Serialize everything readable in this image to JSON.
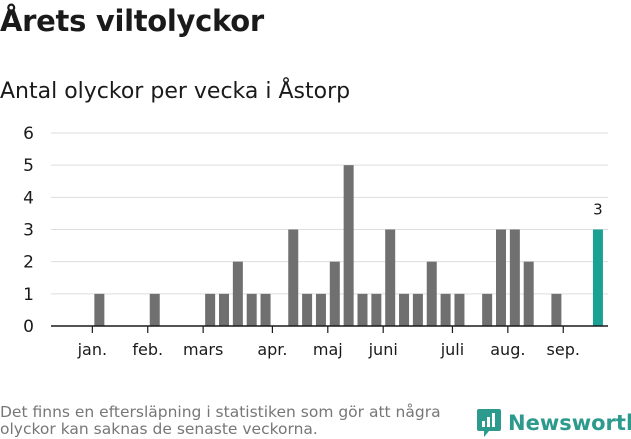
{
  "title": "Årets viltolyckor",
  "subtitle": "Antal olyckor per vecka i Åstorp",
  "footnote": "Det finns en eftersläpning i statistiken som gör att några olyckor kan saknas de senaste veckorna.",
  "brand": {
    "name": "Newsworthy",
    "icon": "newsworthy-logo-icon"
  },
  "colors": {
    "bar": "#707070",
    "highlight": "#1aa193",
    "grid": "#dddddd",
    "axis": "#1a1a1a",
    "brand": "#2c9a8c"
  },
  "chart_data": {
    "type": "bar",
    "title": "Antal olyckor per vecka i Åstorp",
    "xlabel": "",
    "ylabel": "",
    "ylim": [
      0,
      6
    ],
    "yticks": [
      0,
      1,
      2,
      3,
      4,
      5,
      6
    ],
    "grid": true,
    "categories": [
      1,
      2,
      3,
      4,
      5,
      6,
      7,
      8,
      9,
      10,
      11,
      12,
      13,
      14,
      15,
      16,
      17,
      18,
      19,
      20,
      21,
      22,
      23,
      24,
      25,
      26,
      27,
      28,
      29,
      30,
      31,
      32,
      33,
      34,
      35,
      36,
      37,
      38
    ],
    "values": [
      0,
      1,
      0,
      0,
      0,
      1,
      0,
      0,
      0,
      1,
      1,
      2,
      1,
      1,
      0,
      3,
      1,
      1,
      2,
      5,
      1,
      1,
      3,
      1,
      1,
      2,
      1,
      1,
      0,
      1,
      3,
      3,
      2,
      0,
      1,
      0,
      0,
      3
    ],
    "highlight_index": 37,
    "data_labels": [
      {
        "index": 37,
        "text": "3"
      }
    ],
    "month_labels": [
      {
        "label": "jan.",
        "week": 2
      },
      {
        "label": "feb.",
        "week": 6
      },
      {
        "label": "mars",
        "week": 10
      },
      {
        "label": "apr.",
        "week": 15
      },
      {
        "label": "maj",
        "week": 19
      },
      {
        "label": "juni",
        "week": 23
      },
      {
        "label": "juli",
        "week": 28
      },
      {
        "label": "aug.",
        "week": 32
      },
      {
        "label": "sep.",
        "week": 36
      }
    ]
  }
}
